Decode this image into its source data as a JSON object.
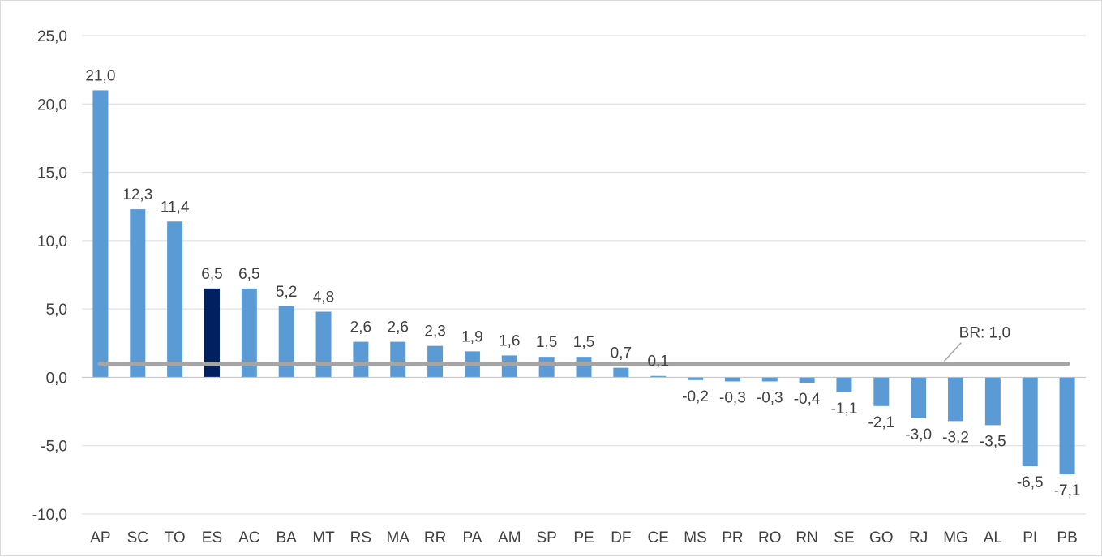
{
  "chart_data": {
    "type": "bar",
    "title": "",
    "xlabel": "",
    "ylabel": "",
    "ylim": [
      -10,
      25
    ],
    "yticks": [
      -10,
      -5,
      0,
      5,
      10,
      15,
      20,
      25
    ],
    "ytick_labels": [
      "-10,0",
      "-5,0",
      "0,0",
      "5,0",
      "10,0",
      "15,0",
      "20,0",
      "25,0"
    ],
    "grid": "horizontal",
    "legend": "none",
    "categories": [
      "AP",
      "SC",
      "TO",
      "ES",
      "AC",
      "BA",
      "MT",
      "RS",
      "MA",
      "RR",
      "PA",
      "AM",
      "SP",
      "PE",
      "DF",
      "CE",
      "MS",
      "PR",
      "RO",
      "RN",
      "SE",
      "GO",
      "RJ",
      "MG",
      "AL",
      "PI",
      "PB"
    ],
    "values": [
      21.0,
      12.3,
      11.4,
      6.5,
      6.5,
      5.2,
      4.8,
      2.6,
      2.6,
      2.3,
      1.9,
      1.6,
      1.5,
      1.5,
      0.7,
      0.1,
      -0.2,
      -0.3,
      -0.3,
      -0.4,
      -1.1,
      -2.1,
      -3.0,
      -3.2,
      -3.5,
      -6.5,
      -7.1
    ],
    "data_labels": [
      "21,0",
      "12,3",
      "11,4",
      "6,5",
      "6,5",
      "5,2",
      "4,8",
      "2,6",
      "2,6",
      "2,3",
      "1,9",
      "1,6",
      "1,5",
      "1,5",
      "0,7",
      "0,1",
      "-0,2",
      "-0,3",
      "-0,3",
      "-0,4",
      "-1,1",
      "-2,1",
      "-3,0",
      "-3,2",
      "-3,5",
      "-6,5",
      "-7,1"
    ],
    "highlight_category": "ES",
    "reference_line": {
      "value": 1.0,
      "label": "BR: 1,0"
    },
    "colors": {
      "bar": "#5b9bd5",
      "highlight": "#002060",
      "reference": "#a5a5a5",
      "grid": "#d9d9d9",
      "axis": "#bfbfbf",
      "text": "#404040"
    }
  }
}
